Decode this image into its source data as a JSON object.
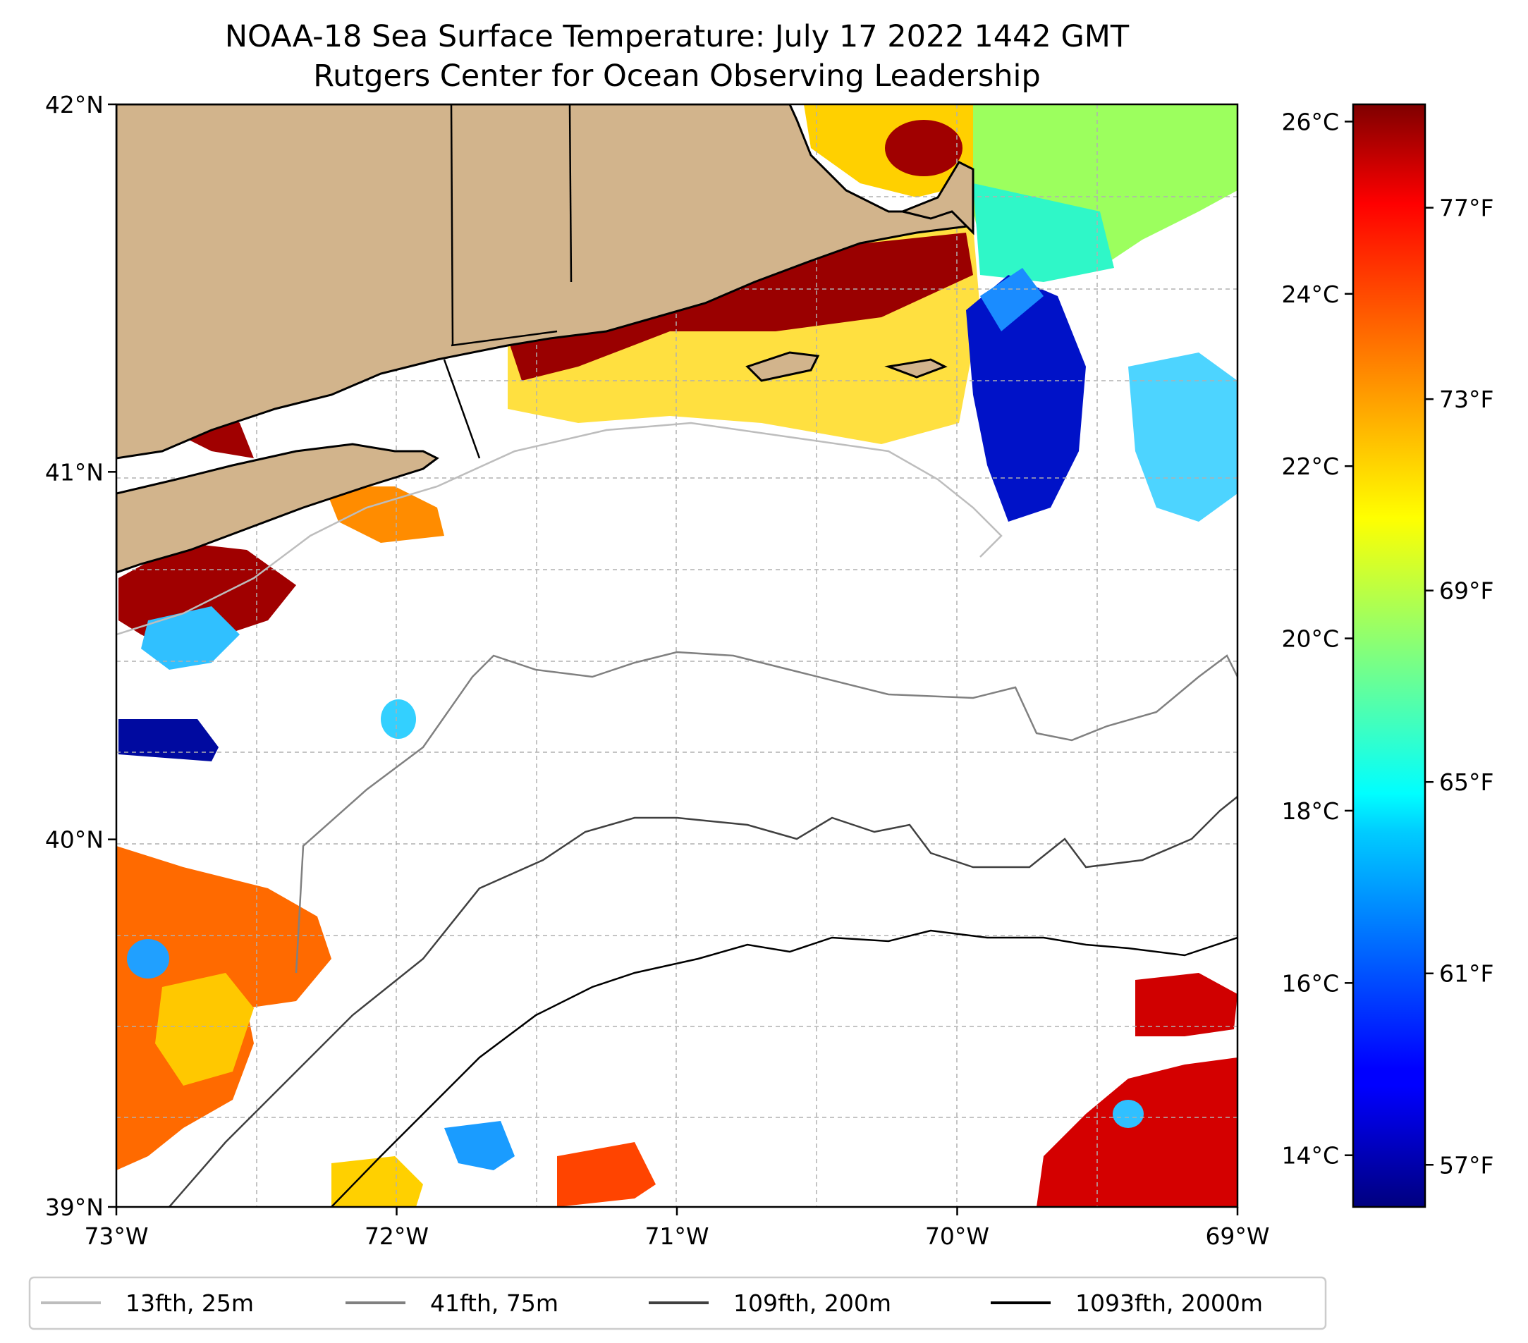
{
  "title": {
    "line1": "NOAA-18 Sea Surface Temperature: July 17 2022 1442 GMT",
    "line2": "Rutgers Center for Ocean Observing Leadership"
  },
  "map": {
    "lon_range": [
      -73,
      -69
    ],
    "lat_range": [
      39,
      42
    ],
    "x_ticks": [
      {
        "value": -73,
        "label": "73°W"
      },
      {
        "value": -72,
        "label": "72°W"
      },
      {
        "value": -71,
        "label": "71°W"
      },
      {
        "value": -70,
        "label": "70°W"
      },
      {
        "value": -69,
        "label": "69°W"
      }
    ],
    "y_ticks": [
      {
        "value": 42,
        "label": "42°N"
      },
      {
        "value": 41,
        "label": "41°N"
      },
      {
        "value": 40,
        "label": "40°N"
      },
      {
        "value": 39,
        "label": "39°N"
      }
    ],
    "gridlines": "dashed, every 0.5°",
    "land_color": "#d2b48c",
    "coastline_color": "#000000"
  },
  "colorbar": {
    "colormap": "jet",
    "celsius_ticks": [
      {
        "value": 14,
        "label": "14°C"
      },
      {
        "value": 16,
        "label": "16°C"
      },
      {
        "value": 18,
        "label": "18°C"
      },
      {
        "value": 20,
        "label": "20°C"
      },
      {
        "value": 22,
        "label": "22°C"
      },
      {
        "value": 24,
        "label": "24°C"
      },
      {
        "value": 26,
        "label": "26°C"
      }
    ],
    "fahrenheit_ticks": [
      {
        "value": 57,
        "label": "57°F"
      },
      {
        "value": 61,
        "label": "61°F"
      },
      {
        "value": 65,
        "label": "65°F"
      },
      {
        "value": 69,
        "label": "69°F"
      },
      {
        "value": 73,
        "label": "73°F"
      },
      {
        "value": 77,
        "label": "77°F"
      }
    ],
    "range_c": [
      13.4,
      26.2
    ]
  },
  "legend": {
    "placement": "bottom",
    "items": [
      {
        "label": "13fth, 25m",
        "color": "#bdbdbd"
      },
      {
        "label": "41fth, 75m",
        "color": "#808080"
      },
      {
        "label": "109fth, 200m",
        "color": "#404040"
      },
      {
        "label": "1093fth, 2000m",
        "color": "#000000"
      }
    ]
  }
}
